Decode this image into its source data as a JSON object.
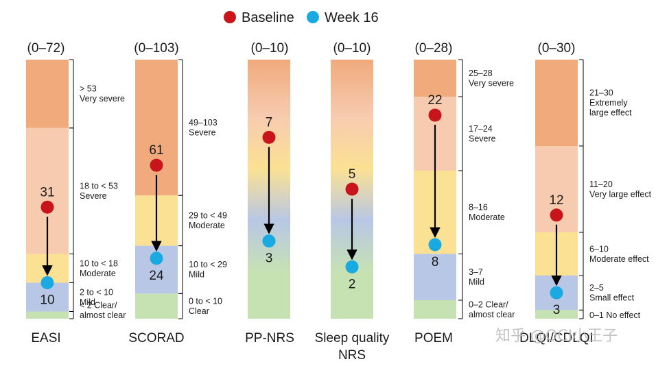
{
  "legend": {
    "baseline_label": "Baseline",
    "week16_label": "Week 16",
    "baseline_color": "#c8151b",
    "week16_color": "#1aa9e0"
  },
  "watermark": "知乎 @OCI小王子",
  "colors": {
    "very_severe": "#f0aa7c",
    "severe": "#f7cbb0",
    "moderate": "#fbe193",
    "mild": "#b8c7e5",
    "clear": "#c6e2b3"
  },
  "chart_data": [
    {
      "type": "scale",
      "name": "EASI",
      "range_label": "(0–72)",
      "ylim": [
        0,
        72
      ],
      "bands": [
        {
          "from": 0,
          "to": 2,
          "level": "clear"
        },
        {
          "from": 2,
          "to": 10,
          "level": "mild"
        },
        {
          "from": 10,
          "to": 18,
          "level": "moderate"
        },
        {
          "from": 18,
          "to": 53,
          "level": "severe"
        },
        {
          "from": 53,
          "to": 72,
          "level": "very_severe"
        }
      ],
      "bracket_labels": [
        {
          "lines": [
            "> 53",
            "Very severe"
          ],
          "from": 53,
          "to": 72
        },
        {
          "lines": [
            "18 to < 53",
            "Severe"
          ],
          "from": 18,
          "to": 53
        },
        {
          "lines": [
            "10 to < 18",
            "Moderate"
          ],
          "from": 10,
          "to": 18
        },
        {
          "lines": [
            "2 to < 10",
            "Mild"
          ],
          "from": 2,
          "to": 10
        },
        {
          "lines": [
            "< 2 Clear/",
            "almost clear"
          ],
          "from": 0,
          "to": 2
        }
      ],
      "baseline": 31,
      "week16": 10,
      "baseline_label": "31",
      "week16_label": "10"
    },
    {
      "type": "scale",
      "name": "SCORAD",
      "range_label": "(0–103)",
      "ylim": [
        0,
        103
      ],
      "bands": [
        {
          "from": 0,
          "to": 10,
          "level": "clear"
        },
        {
          "from": 10,
          "to": 29,
          "level": "mild"
        },
        {
          "from": 29,
          "to": 49,
          "level": "moderate"
        },
        {
          "from": 49,
          "to": 103,
          "level": "very_severe"
        }
      ],
      "bracket_labels": [
        {
          "lines": [
            "49–103",
            "Severe"
          ],
          "from": 49,
          "to": 103
        },
        {
          "lines": [
            "29 to < 49",
            "Moderate"
          ],
          "from": 29,
          "to": 49
        },
        {
          "lines": [
            "10 to < 29",
            "Mild"
          ],
          "from": 10,
          "to": 29
        },
        {
          "lines": [
            "0 to < 10",
            "Clear"
          ],
          "from": 0,
          "to": 10
        }
      ],
      "baseline": 61,
      "week16": 24,
      "baseline_label": "61",
      "week16_label": "24"
    },
    {
      "type": "scale",
      "name": "PP-NRS",
      "range_label": "(0–10)",
      "ylim": [
        0,
        10
      ],
      "gradient": true,
      "baseline": 7,
      "week16": 3,
      "baseline_label": "7",
      "week16_label": "3"
    },
    {
      "type": "scale",
      "name": "Sleep quality NRS",
      "name_lines": [
        "Sleep quality",
        "NRS"
      ],
      "range_label": "(0–10)",
      "ylim": [
        0,
        10
      ],
      "gradient": true,
      "baseline": 5,
      "week16": 2,
      "baseline_label": "5",
      "week16_label": "2"
    },
    {
      "type": "scale",
      "name": "POEM",
      "range_label": "(0–28)",
      "ylim": [
        0,
        28
      ],
      "bands": [
        {
          "from": 0,
          "to": 2,
          "level": "clear"
        },
        {
          "from": 2,
          "to": 7,
          "level": "mild"
        },
        {
          "from": 7,
          "to": 16,
          "level": "moderate"
        },
        {
          "from": 16,
          "to": 24,
          "level": "severe"
        },
        {
          "from": 24,
          "to": 28,
          "level": "very_severe"
        }
      ],
      "bracket_labels": [
        {
          "lines": [
            "25–28",
            "Very severe"
          ],
          "from": 24,
          "to": 28
        },
        {
          "lines": [
            "17–24",
            "Severe"
          ],
          "from": 16,
          "to": 24
        },
        {
          "lines": [
            "8–16",
            "Moderate"
          ],
          "from": 7,
          "to": 16
        },
        {
          "lines": [
            "3–7",
            "Mild"
          ],
          "from": 2,
          "to": 7
        },
        {
          "lines": [
            "0–2 Clear/",
            "almost clear"
          ],
          "from": 0,
          "to": 2
        }
      ],
      "baseline": 22,
      "week16": 8,
      "baseline_label": "22",
      "week16_label": "8"
    },
    {
      "type": "scale",
      "name": "DLQI/CDLQI",
      "range_label": "(0–30)",
      "ylim": [
        0,
        30
      ],
      "bands": [
        {
          "from": 0,
          "to": 1,
          "level": "clear"
        },
        {
          "from": 1,
          "to": 5,
          "level": "mild"
        },
        {
          "from": 5,
          "to": 10,
          "level": "moderate"
        },
        {
          "from": 10,
          "to": 20,
          "level": "severe"
        },
        {
          "from": 20,
          "to": 30,
          "level": "very_severe"
        }
      ],
      "bracket_labels": [
        {
          "lines": [
            "21–30",
            "Extremely",
            "large effect"
          ],
          "from": 20,
          "to": 30
        },
        {
          "lines": [
            "11–20",
            "Very large effect"
          ],
          "from": 10,
          "to": 20
        },
        {
          "lines": [
            "6–10",
            "Moderate effect"
          ],
          "from": 5,
          "to": 10
        },
        {
          "lines": [
            "2–5",
            "Small effect"
          ],
          "from": 1,
          "to": 5
        },
        {
          "lines": [
            "0–1 No effect"
          ],
          "from": 0,
          "to": 1
        }
      ],
      "baseline": 12,
      "week16": 3,
      "baseline_label": "12",
      "week16_label": "3"
    }
  ]
}
